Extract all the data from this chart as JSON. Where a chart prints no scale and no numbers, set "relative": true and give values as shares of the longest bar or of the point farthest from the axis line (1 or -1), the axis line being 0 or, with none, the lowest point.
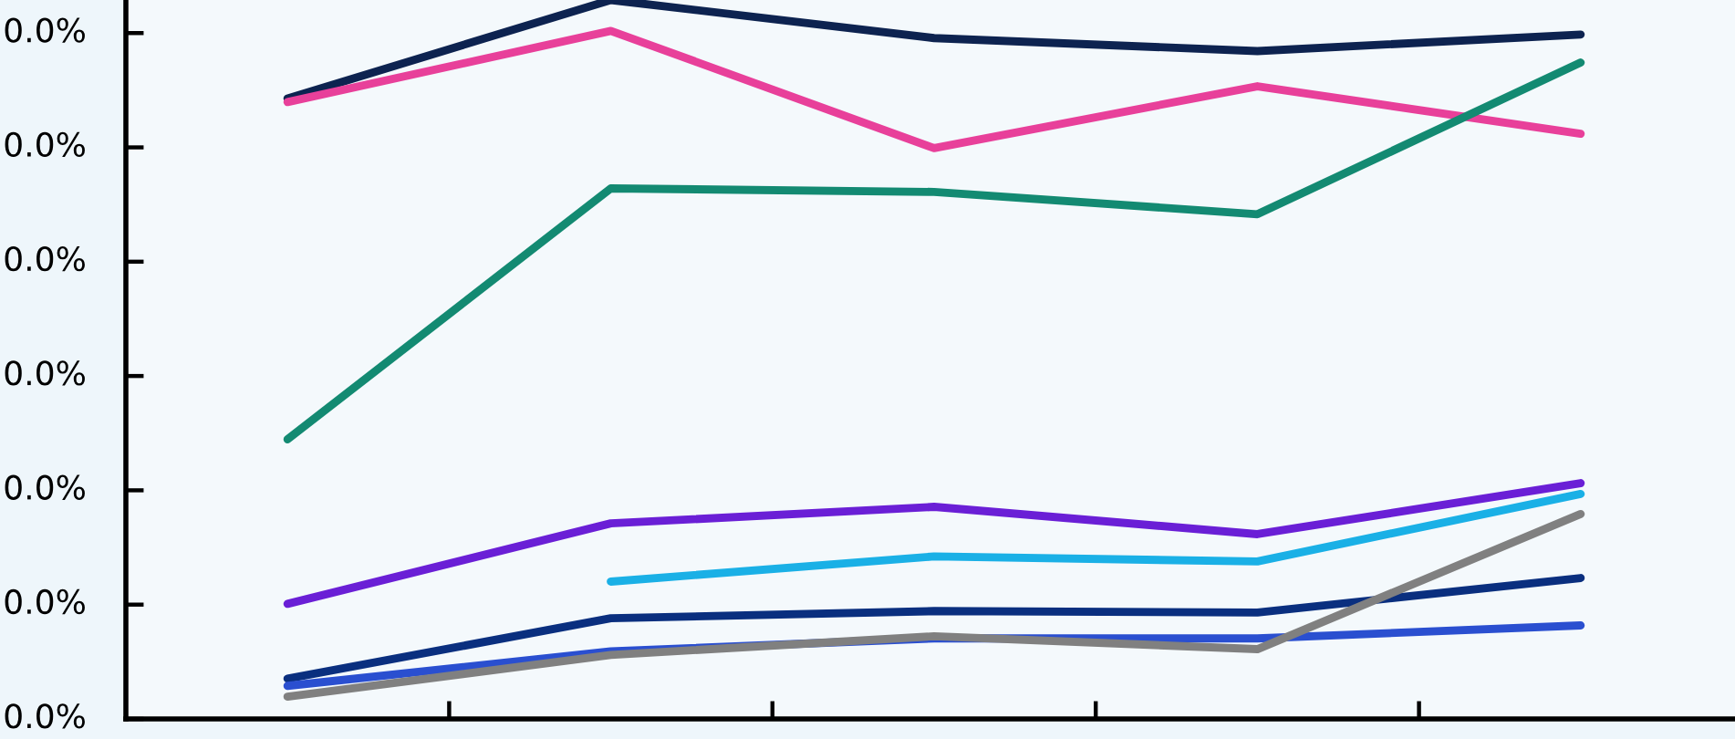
{
  "chart_data": {
    "type": "line",
    "relative": true,
    "categories": [
      null,
      null,
      null,
      null,
      null
    ],
    "annotations": [
      "0.0%",
      "0.0%",
      "0.0%",
      "0.0%",
      "0.0%",
      "0.0%",
      "0.0%"
    ],
    "series": [
      {
        "color": "#0d2350",
        "values": [
          0.863,
          1.0,
          0.947,
          0.929,
          0.952
        ]
      },
      {
        "color": "#e8409a",
        "values": [
          0.858,
          0.957,
          0.794,
          0.88,
          0.814
        ]
      },
      {
        "color": "#138a72",
        "values": [
          0.389,
          0.738,
          0.733,
          0.702,
          0.913
        ]
      },
      {
        "color": "#6a1fd6",
        "values": [
          0.16,
          0.272,
          0.295,
          0.257,
          0.328
        ]
      },
      {
        "color": "#1ab0e6",
        "values": [
          null,
          0.191,
          0.226,
          0.219,
          0.313
        ]
      },
      {
        "color": "#0a2f7f",
        "values": [
          0.056,
          0.14,
          0.15,
          0.148,
          0.196
        ]
      },
      {
        "color": "#2a4fd0",
        "values": [
          0.046,
          0.094,
          0.112,
          0.112,
          0.13
        ]
      },
      {
        "color": "#808080",
        "values": [
          0.031,
          0.089,
          0.115,
          0.097,
          0.285
        ]
      }
    ],
    "grid": false,
    "legend": false
  }
}
